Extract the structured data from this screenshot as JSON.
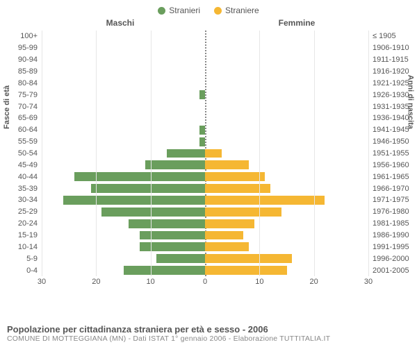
{
  "legend": {
    "male": {
      "label": "Stranieri",
      "color": "#6a9e5d"
    },
    "female": {
      "label": "Straniere",
      "color": "#f5b733"
    }
  },
  "columns": {
    "left": "Maschi",
    "right": "Femmine"
  },
  "axis_titles": {
    "left": "Fasce di età",
    "right": "Anni di nascita"
  },
  "chart": {
    "type": "population-pyramid",
    "xlim": 30,
    "xticks_left": [
      30,
      20,
      10,
      0
    ],
    "xticks_right": [
      0,
      10,
      20,
      30
    ],
    "grid_color": "#e6e6e6",
    "center_line_color": "#888888",
    "background": "#ffffff",
    "bar_color_male": "#6a9e5d",
    "bar_color_female": "#f5b733",
    "rows": [
      {
        "age": "100+",
        "birth": "≤ 1905",
        "m": 0,
        "f": 0
      },
      {
        "age": "95-99",
        "birth": "1906-1910",
        "m": 0,
        "f": 0
      },
      {
        "age": "90-94",
        "birth": "1911-1915",
        "m": 0,
        "f": 0
      },
      {
        "age": "85-89",
        "birth": "1916-1920",
        "m": 0,
        "f": 0
      },
      {
        "age": "80-84",
        "birth": "1921-1925",
        "m": 0,
        "f": 0
      },
      {
        "age": "75-79",
        "birth": "1926-1930",
        "m": 1,
        "f": 0
      },
      {
        "age": "70-74",
        "birth": "1931-1935",
        "m": 0,
        "f": 0
      },
      {
        "age": "65-69",
        "birth": "1936-1940",
        "m": 0,
        "f": 0
      },
      {
        "age": "60-64",
        "birth": "1941-1945",
        "m": 1,
        "f": 0
      },
      {
        "age": "55-59",
        "birth": "1946-1950",
        "m": 1,
        "f": 0
      },
      {
        "age": "50-54",
        "birth": "1951-1955",
        "m": 7,
        "f": 3
      },
      {
        "age": "45-49",
        "birth": "1956-1960",
        "m": 11,
        "f": 8
      },
      {
        "age": "40-44",
        "birth": "1961-1965",
        "m": 24,
        "f": 11
      },
      {
        "age": "35-39",
        "birth": "1966-1970",
        "m": 21,
        "f": 12
      },
      {
        "age": "30-34",
        "birth": "1971-1975",
        "m": 26,
        "f": 22
      },
      {
        "age": "25-29",
        "birth": "1976-1980",
        "m": 19,
        "f": 14
      },
      {
        "age": "20-24",
        "birth": "1981-1985",
        "m": 14,
        "f": 9
      },
      {
        "age": "15-19",
        "birth": "1986-1990",
        "m": 12,
        "f": 7
      },
      {
        "age": "10-14",
        "birth": "1991-1995",
        "m": 12,
        "f": 8
      },
      {
        "age": "5-9",
        "birth": "1996-2000",
        "m": 9,
        "f": 16
      },
      {
        "age": "0-4",
        "birth": "2001-2005",
        "m": 15,
        "f": 15
      }
    ]
  },
  "footer": {
    "title": "Popolazione per cittadinanza straniera per età e sesso - 2006",
    "subtitle": "COMUNE DI MOTTEGGIANA (MN) - Dati ISTAT 1° gennaio 2006 - Elaborazione TUTTITALIA.IT"
  }
}
